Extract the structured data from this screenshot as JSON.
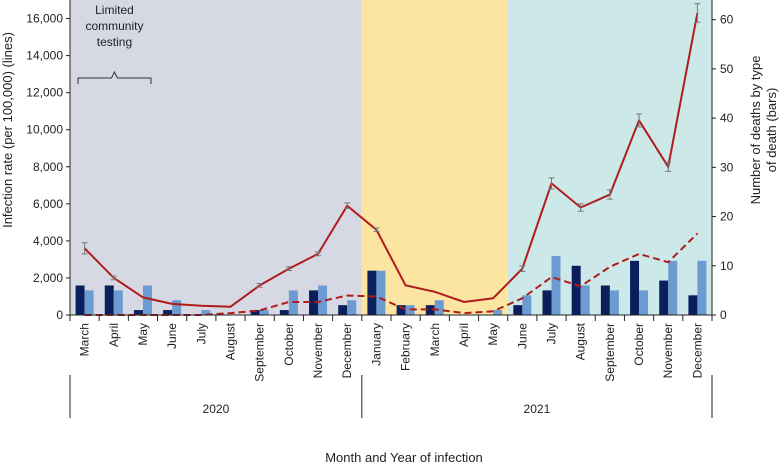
{
  "chart_data": {
    "type": "bar+line",
    "title": "",
    "xlabel": "Month and Year of infection",
    "ylabel_left": "Infection rate (per 100,000) (lines)",
    "ylabel_right": "Number of deaths by type of death (bars)",
    "ylabel_right_lines": [
      "Number of deaths by type",
      "of death (bars)"
    ],
    "ylim_left": [
      0,
      17000
    ],
    "ylim_right": [
      0,
      64
    ],
    "yticks_left": [
      "0",
      "2,000",
      "4,000",
      "6,000",
      "8,000",
      "10,000",
      "12,000",
      "14,000",
      "16,000"
    ],
    "yticks_right": [
      "0",
      "10",
      "20",
      "30",
      "40",
      "50",
      "60"
    ],
    "categories": [
      "March",
      "April",
      "May",
      "June",
      "July",
      "August",
      "September",
      "October",
      "November",
      "December",
      "January",
      "February",
      "March",
      "April",
      "May",
      "June",
      "July",
      "August",
      "September",
      "October",
      "November",
      "December"
    ],
    "years": [
      {
        "label": "2020",
        "start": 0,
        "end": 9
      },
      {
        "label": "2021",
        "start": 10,
        "end": 21
      }
    ],
    "periods": [
      {
        "start": 0,
        "end": 9,
        "color": "#d6d9e4"
      },
      {
        "start": 10,
        "end": 14,
        "color": "#fce5a1"
      },
      {
        "start": 15,
        "end": 21,
        "color": "#cce8e9"
      }
    ],
    "annotation": {
      "lines": [
        "Limited",
        "community",
        "testing"
      ],
      "start": 0,
      "end": 2
    },
    "bar_series": [
      {
        "color": "#0b1f5c",
        "values": [
          6,
          6,
          1,
          1,
          0,
          0,
          1,
          1,
          5,
          2,
          9,
          2,
          2,
          0,
          0,
          2,
          5,
          10,
          6,
          11,
          7,
          4
        ]
      },
      {
        "color": "#6b9bd1",
        "values": [
          5,
          5,
          6,
          3,
          1,
          0,
          1,
          5,
          6,
          3,
          9,
          2,
          3,
          0,
          1,
          4,
          12,
          6,
          5,
          5,
          11,
          11
        ]
      }
    ],
    "line_series": [
      {
        "style": "solid",
        "color": "#b01c1c",
        "values": [
          3600,
          2000,
          950,
          600,
          500,
          450,
          1600,
          2500,
          3300,
          5900,
          4600,
          1600,
          1250,
          700,
          900,
          2500,
          7100,
          5800,
          6500,
          10500,
          8000,
          16300
        ],
        "error": [
          300,
          100,
          0,
          0,
          0,
          0,
          100,
          100,
          100,
          150,
          100,
          0,
          0,
          0,
          0,
          150,
          300,
          200,
          250,
          350,
          250,
          500
        ]
      },
      {
        "style": "dashed",
        "color": "#b01c1c",
        "values": [
          0,
          0,
          0,
          0,
          0,
          100,
          250,
          700,
          700,
          1050,
          1000,
          300,
          300,
          100,
          200,
          900,
          2050,
          1550,
          2600,
          3300,
          2850,
          4400
        ]
      }
    ]
  }
}
